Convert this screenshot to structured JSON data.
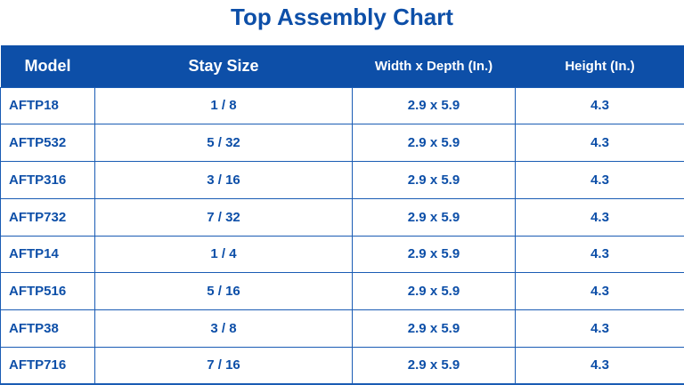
{
  "title": "Top Assembly Chart",
  "colors": {
    "accent": "#0d4fa8",
    "header_text": "#ffffff",
    "border": "#1a5cb4"
  },
  "table": {
    "headers": [
      "Model",
      "Stay Size",
      "Width x Depth (In.)",
      "Height (In.)"
    ],
    "rows": [
      [
        "AFTP18",
        "1 / 8",
        "2.9 x 5.9",
        "4.3"
      ],
      [
        "AFTP532",
        "5 / 32",
        "2.9 x 5.9",
        "4.3"
      ],
      [
        "AFTP316",
        "3 / 16",
        "2.9 x 5.9",
        "4.3"
      ],
      [
        "AFTP732",
        "7 / 32",
        "2.9 x 5.9",
        "4.3"
      ],
      [
        "AFTP14",
        "1 / 4",
        "2.9 x 5.9",
        "4.3"
      ],
      [
        "AFTP516",
        "5 / 16",
        "2.9 x 5.9",
        "4.3"
      ],
      [
        "AFTP38",
        "3 / 8",
        "2.9 x 5.9",
        "4.3"
      ],
      [
        "AFTP716",
        "7 / 16",
        "2.9 x 5.9",
        "4.3"
      ]
    ]
  }
}
